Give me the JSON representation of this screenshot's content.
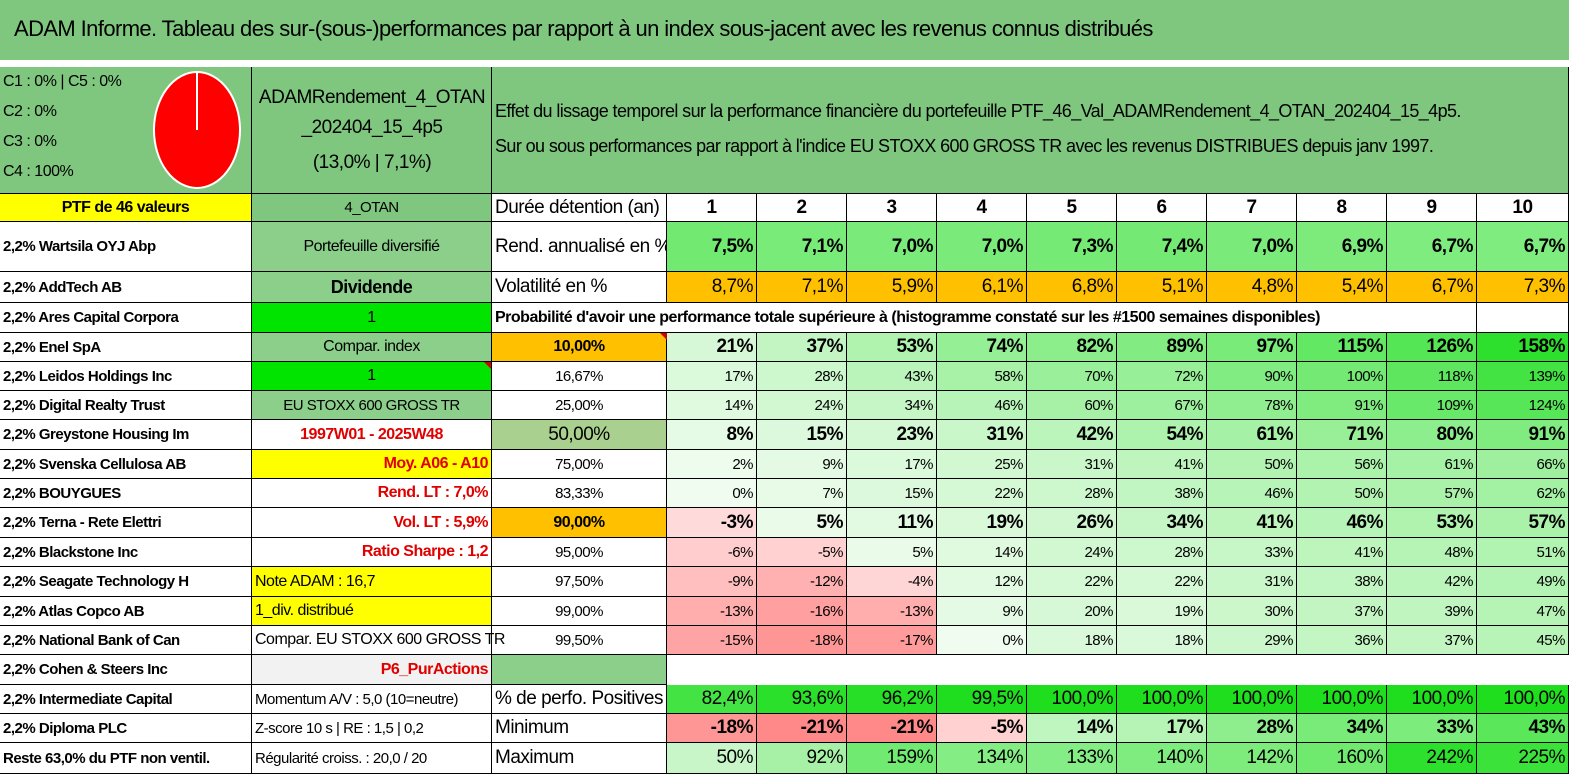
{
  "title": "ADAM Informe. Tableau des sur-(sous-)performances par rapport à un index sous-jacent avec les revenus connus distribués",
  "pie": {
    "legend": [
      "C1 : 0% | C5 : 0%",
      "C2 : 0%",
      "C3 : 0%",
      "C4 : 100%"
    ],
    "color": "#ff0000"
  },
  "portfolio": {
    "name": "ADAMRendement_4_OTAN _202404_15_4p5",
    "stats": "(13,0% | 7,1%)",
    "count_label": "PTF de 46 valeurs",
    "code": "4_OTAN"
  },
  "description": {
    "line1": "Effet du lissage temporel sur la performance financière du portefeuille PTF_46_Val_ADAMRendement_4_OTAN_202404_15_4p5.",
    "line2": "Sur ou sous performances par rapport à l'indice EU STOXX 600 GROSS TR avec les revenus DISTRIBUES depuis janv 1997."
  },
  "holdings": [
    "2,2% Wartsila OYJ Abp",
    "2,2% AddTech AB",
    "2,2% Ares Capital Corpora",
    "2,2% Enel SpA",
    "2,2% Leidos Holdings Inc",
    "2,2% Digital Realty Trust",
    "2,2% Greystone Housing Im",
    "2,2% Svenska Cellulosa AB",
    "2,2% BOUYGUES",
    "2,2% Terna - Rete Elettri",
    "2,2% Blackstone Inc",
    "2,2% Seagate Technology H",
    "2,2% Atlas Copco AB",
    "2,2% National Bank of Can",
    "2,2% Cohen & Steers Inc",
    "2,2% Intermediate Capital",
    "2,2% Diploma PLC",
    "Reste 63,0% du PTF non ventil."
  ],
  "params": [
    "Portefeuille diversifié",
    "Dividende",
    "1",
    "Compar. index",
    "1",
    "EU STOXX 600 GROSS TR",
    "1997W01 - 2025W48",
    "Moy. A06 - A10",
    "Rend. LT : 7,0%",
    "Vol. LT : 5,9%",
    "Ratio Sharpe : 1,2",
    "Note ADAM : 16,7",
    "1_div. distribué",
    "Compar. EU STOXX 600 GROSS TR",
    "P6_PurActions",
    "Momentum A/V : 5,0 (10=neutre)",
    "Z-score 10 s | RE : 1,5 | 0,2",
    "Régularité croiss. : 20,0 / 20"
  ],
  "table": {
    "header_label": "Durée détention (an)",
    "years": [
      "1",
      "2",
      "3",
      "4",
      "5",
      "6",
      "7",
      "8",
      "9",
      "10"
    ],
    "rend_label": "Rend. annualisé en %",
    "rend": [
      "7,5%",
      "7,1%",
      "7,0%",
      "7,0%",
      "7,3%",
      "7,4%",
      "7,0%",
      "6,9%",
      "6,7%",
      "6,7%"
    ],
    "vol_label": "Volatilité en %",
    "vol": [
      "8,7%",
      "7,1%",
      "5,9%",
      "6,1%",
      "6,8%",
      "5,1%",
      "4,8%",
      "5,4%",
      "6,7%",
      "7,3%"
    ],
    "proba_title": "Probabilité d'avoir une performance totale supérieure à (histogramme constaté sur les #1500 semaines disponibles)",
    "prob_rows": [
      {
        "label": "10,00%",
        "values": [
          "21%",
          "37%",
          "53%",
          "74%",
          "82%",
          "89%",
          "97%",
          "115%",
          "126%",
          "158%"
        ]
      },
      {
        "label": "16,67%",
        "values": [
          "17%",
          "28%",
          "43%",
          "58%",
          "70%",
          "72%",
          "90%",
          "100%",
          "118%",
          "139%"
        ]
      },
      {
        "label": "25,00%",
        "values": [
          "14%",
          "24%",
          "34%",
          "46%",
          "60%",
          "67%",
          "78%",
          "91%",
          "109%",
          "124%"
        ]
      },
      {
        "label": "50,00%",
        "values": [
          "8%",
          "15%",
          "23%",
          "31%",
          "42%",
          "54%",
          "61%",
          "71%",
          "80%",
          "91%"
        ]
      },
      {
        "label": "75,00%",
        "values": [
          "2%",
          "9%",
          "17%",
          "25%",
          "31%",
          "41%",
          "50%",
          "56%",
          "61%",
          "66%"
        ]
      },
      {
        "label": "83,33%",
        "values": [
          "0%",
          "7%",
          "15%",
          "22%",
          "28%",
          "38%",
          "46%",
          "50%",
          "57%",
          "62%"
        ]
      },
      {
        "label": "90,00%",
        "values": [
          "-3%",
          "5%",
          "11%",
          "19%",
          "26%",
          "34%",
          "41%",
          "46%",
          "53%",
          "57%"
        ]
      },
      {
        "label": "95,00%",
        "values": [
          "-6%",
          "-5%",
          "5%",
          "14%",
          "24%",
          "28%",
          "33%",
          "41%",
          "48%",
          "51%"
        ]
      },
      {
        "label": "97,50%",
        "values": [
          "-9%",
          "-12%",
          "-4%",
          "12%",
          "22%",
          "22%",
          "31%",
          "38%",
          "42%",
          "49%"
        ]
      },
      {
        "label": "99,00%",
        "values": [
          "-13%",
          "-16%",
          "-13%",
          "9%",
          "20%",
          "19%",
          "30%",
          "37%",
          "39%",
          "47%"
        ]
      },
      {
        "label": "99,50%",
        "values": [
          "-15%",
          "-18%",
          "-17%",
          "0%",
          "18%",
          "18%",
          "29%",
          "36%",
          "37%",
          "45%"
        ]
      }
    ],
    "pos_label": "% de perfo. Positives",
    "pos": [
      "82,4%",
      "93,6%",
      "96,2%",
      "99,5%",
      "100,0%",
      "100,0%",
      "100,0%",
      "100,0%",
      "100,0%",
      "100,0%"
    ],
    "min_label": "Minimum",
    "min": [
      "-18%",
      "-21%",
      "-21%",
      "-5%",
      "14%",
      "17%",
      "28%",
      "34%",
      "33%",
      "43%"
    ],
    "max_label": "Maximum",
    "max": [
      "50%",
      "92%",
      "159%",
      "134%",
      "133%",
      "140%",
      "142%",
      "160%",
      "242%",
      "225%"
    ]
  }
}
